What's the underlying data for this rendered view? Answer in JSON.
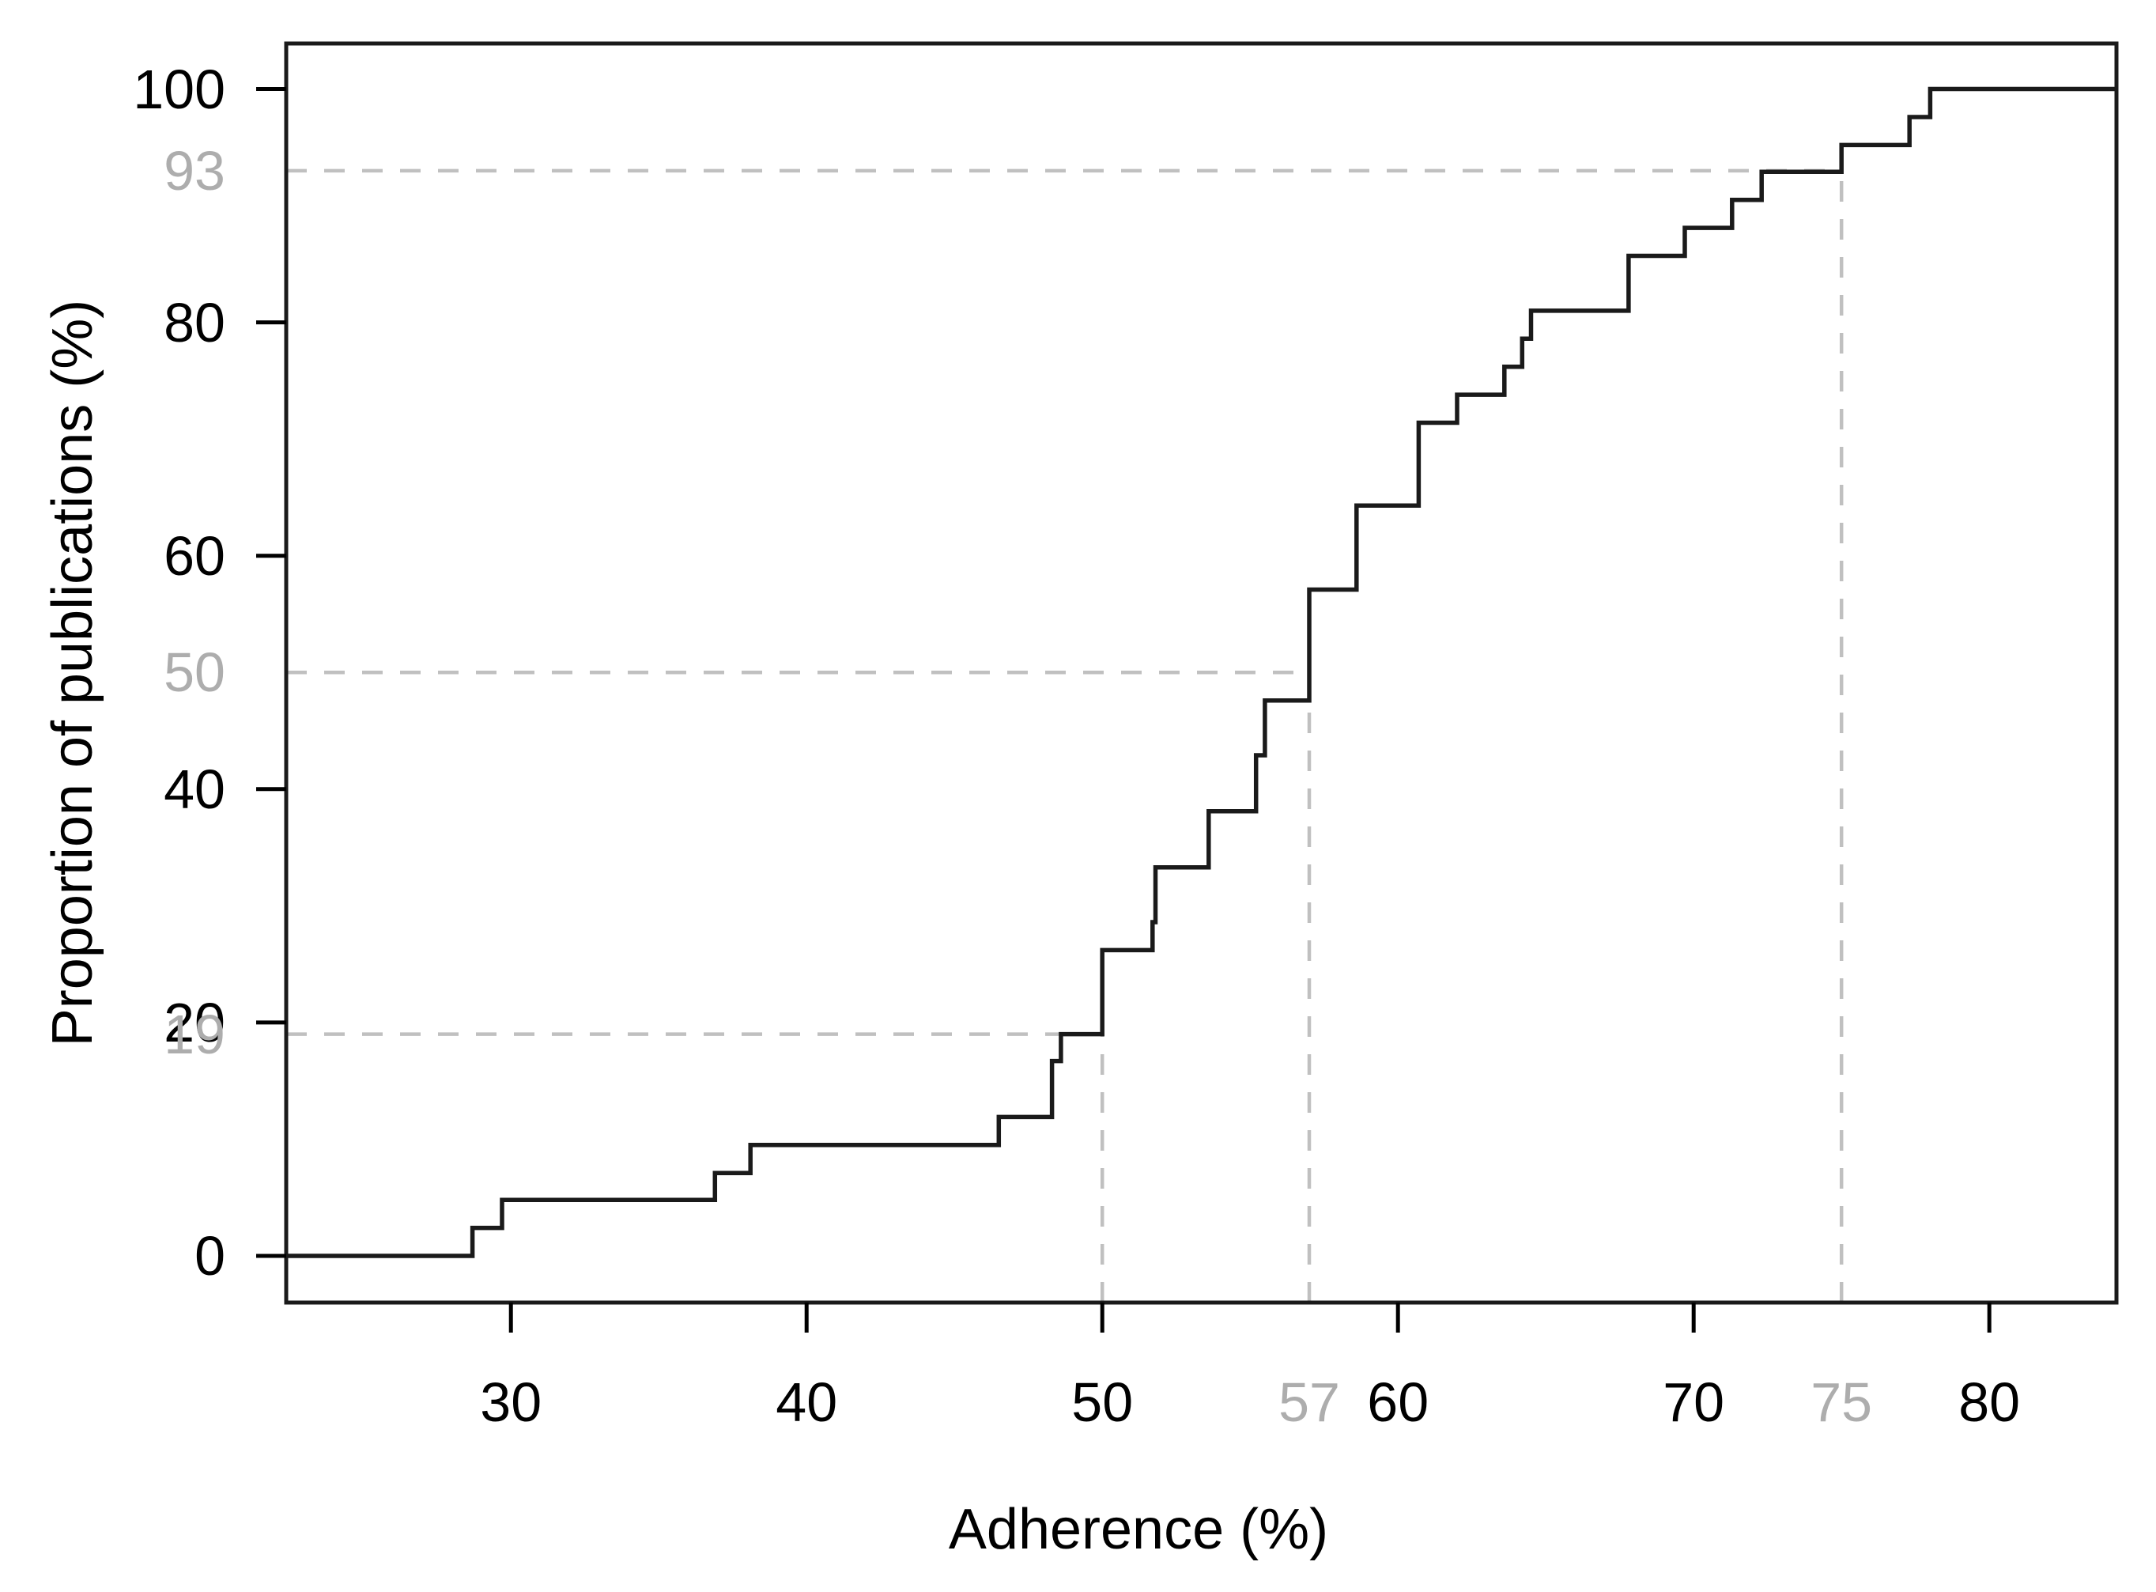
{
  "figure": {
    "background": "#ffffff",
    "curve_color": "#1a1a1a",
    "box_color": "#1a1a1a",
    "guide_line_color": "#c0c0c0",
    "gray_label_color": "#adadad",
    "black_label_color": "#000000"
  },
  "chart_data": {
    "type": "line",
    "subtype": "ecdf-step",
    "title": "",
    "xlabel": "Adherence (%)",
    "ylabel": "Proportion of publications (%)",
    "xlim": [
      22.4,
      84.3
    ],
    "ylim": [
      -4,
      103.9
    ],
    "x_ticks": [
      30,
      40,
      50,
      60,
      70,
      80
    ],
    "y_ticks": [
      0,
      20,
      40,
      60,
      80,
      100
    ],
    "grid": false,
    "legend": "none",
    "n_observations": 42,
    "steps": [
      [
        28.7,
        2.4
      ],
      [
        29.7,
        4.8
      ],
      [
        36.9,
        7.1
      ],
      [
        38.1,
        9.5
      ],
      [
        46.5,
        11.9
      ],
      [
        48.3,
        16.7
      ],
      [
        48.6,
        19.0
      ],
      [
        50.0,
        26.2
      ],
      [
        51.7,
        28.6
      ],
      [
        51.8,
        33.3
      ],
      [
        53.6,
        38.1
      ],
      [
        55.2,
        42.9
      ],
      [
        55.5,
        47.6
      ],
      [
        57.0,
        57.1
      ],
      [
        58.6,
        64.3
      ],
      [
        60.7,
        71.4
      ],
      [
        62.0,
        73.8
      ],
      [
        63.6,
        76.2
      ],
      [
        64.2,
        78.6
      ],
      [
        64.5,
        81.0
      ],
      [
        67.8,
        85.7
      ],
      [
        69.7,
        88.1
      ],
      [
        71.3,
        90.5
      ],
      [
        72.3,
        92.9
      ],
      [
        75.0,
        95.2
      ],
      [
        77.3,
        97.6
      ],
      [
        78.0,
        100.0
      ]
    ],
    "quantile_guides": [
      {
        "x": 50,
        "y": 19,
        "x_label": "",
        "y_label": "19"
      },
      {
        "x": 57,
        "y": 50,
        "x_label": "57",
        "y_label": "50"
      },
      {
        "x": 75,
        "y": 93,
        "x_label": "75",
        "y_label": "93"
      }
    ]
  }
}
